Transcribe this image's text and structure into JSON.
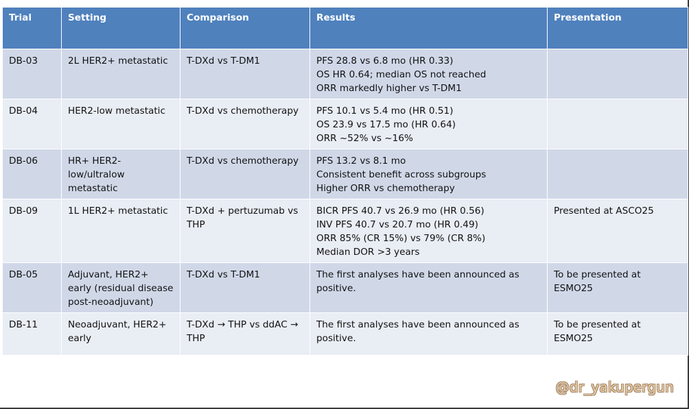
{
  "headers": {
    "trial": "Trial",
    "setting": "Setting",
    "comparison": "Comparison",
    "results": "Results",
    "presentation": "Presentation"
  },
  "rows": [
    {
      "trial": "DB-03",
      "setting": "2L HER2+ metastatic",
      "comparison": "T-DXd vs T-DM1",
      "results": [
        "PFS 28.8 vs 6.8 mo (HR 0.33)",
        "OS HR 0.64; median OS not reached",
        "ORR markedly higher vs T-DM1"
      ],
      "presentation": ""
    },
    {
      "trial": "DB-04",
      "setting": "HER2-low metastatic",
      "comparison": "T-DXd vs chemotherapy",
      "results": [
        "PFS 10.1 vs 5.4 mo (HR 0.51)",
        "OS 23.9 vs 17.5 mo (HR 0.64)",
        "ORR ~52% vs ~16%"
      ],
      "presentation": ""
    },
    {
      "trial": "DB-06",
      "setting": "HR+ HER2-low/ultralow metastatic",
      "comparison": "T-DXd vs chemotherapy",
      "results": [
        "PFS 13.2 vs 8.1 mo",
        "Consistent benefit across subgroups",
        "Higher ORR vs chemotherapy"
      ],
      "presentation": ""
    },
    {
      "trial": "DB-09",
      "setting": "1L HER2+ metastatic",
      "comparison": "T-DXd + pertuzumab vs THP",
      "results": [
        "BICR PFS 40.7 vs 26.9 mo (HR 0.56)",
        "INV PFS 40.7 vs 20.7 mo (HR 0.49)",
        "ORR 85% (CR 15%) vs 79% (CR 8%)",
        "Median DOR >3 years"
      ],
      "presentation": "Presented at ASCO25"
    },
    {
      "trial": "DB-05",
      "setting": "Adjuvant, HER2+ early (residual disease post-neoadjuvant)",
      "comparison": "T-DXd vs T-DM1",
      "results": [
        "The first analyses have been announced as positive."
      ],
      "presentation": "To be presented at ESMO25"
    },
    {
      "trial": "DB-11",
      "setting": "Neoadjuvant, HER2+ early",
      "comparison": "T-DXd → THP vs ddAC → THP",
      "results": [
        "The first analyses have been announced as positive."
      ],
      "presentation": "To be presented at ESMO25"
    }
  ],
  "watermark": "@dr_yakupergun"
}
